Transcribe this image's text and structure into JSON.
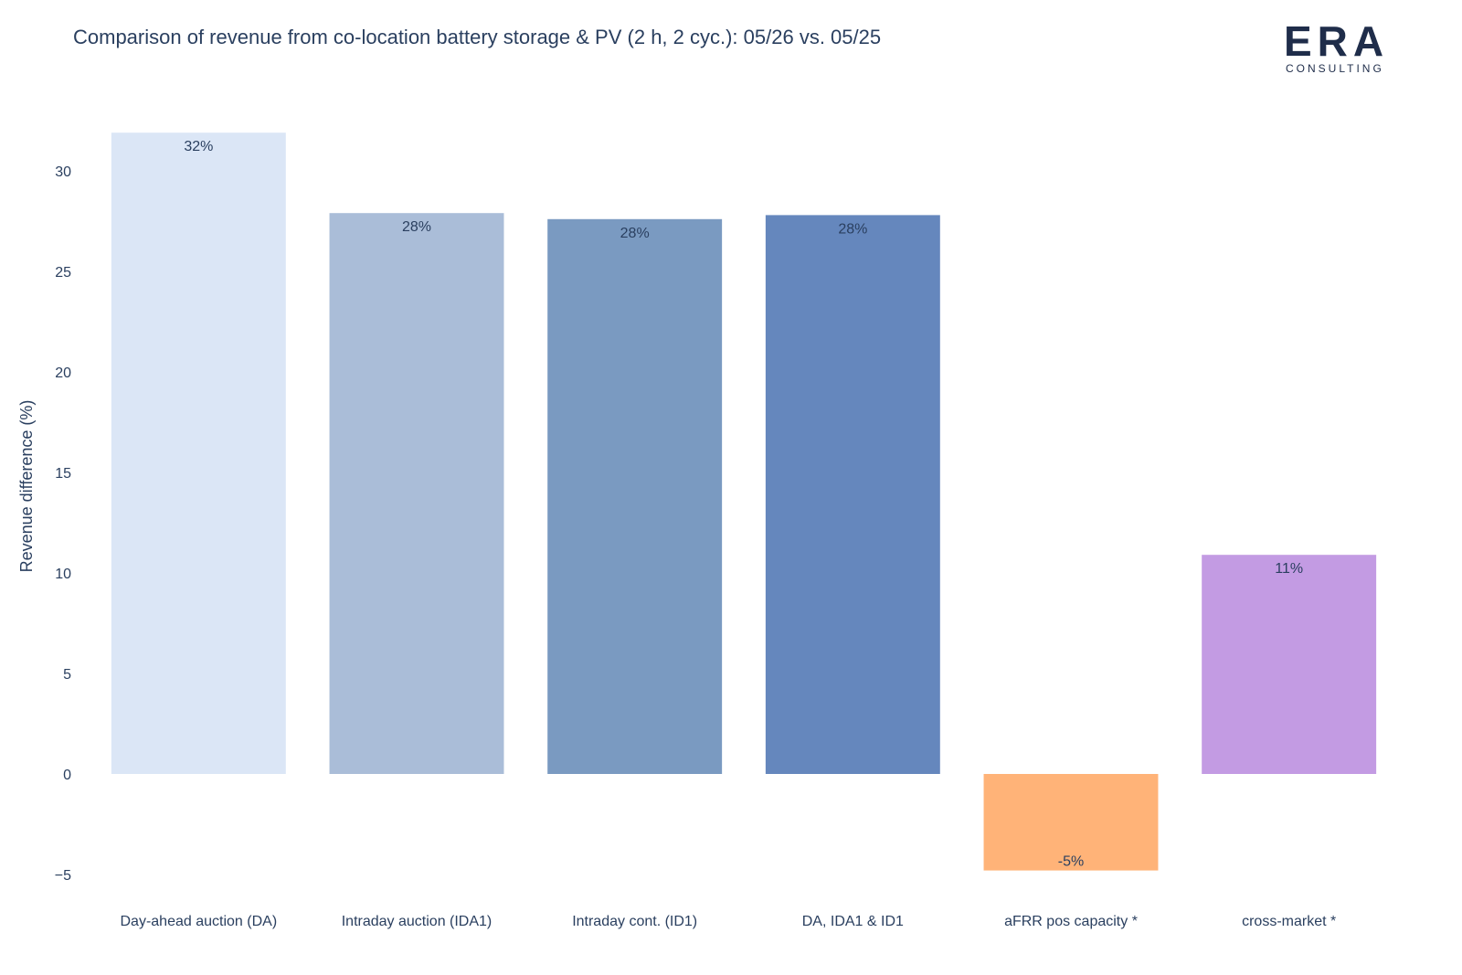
{
  "title": "Comparison of revenue from co-location battery storage & PV (2 h, 2 cyc.): 05/26 vs. 05/25",
  "logo": {
    "letters": "ERA",
    "subtitle": "CONSULTING"
  },
  "colors": {
    "text": "#2a3f5f",
    "bars": [
      "#dbe6f6",
      "#aabdd8",
      "#7a9ac1",
      "#6587bd",
      "#ffb378",
      "#c39be3"
    ]
  },
  "chart_data": {
    "type": "bar",
    "title": "Comparison of revenue from co-location battery storage & PV (2 h, 2 cyc.): 05/26 vs. 05/25",
    "xlabel": "",
    "ylabel": "Revenue difference (%)",
    "categories": [
      "Day-ahead auction (DA)",
      "Intraday auction (IDA1)",
      "Intraday cont. (ID1)",
      "DA, IDA1 & ID1",
      "aFRR pos capacity *",
      "cross-market *"
    ],
    "values": [
      31.9,
      27.9,
      27.6,
      27.8,
      -4.8,
      10.9
    ],
    "data_labels": [
      "32%",
      "28%",
      "28%",
      "28%",
      "-5%",
      "11%"
    ],
    "ylim": [
      -5.6,
      32
    ],
    "yticks": [
      -5,
      0,
      5,
      10,
      15,
      20,
      25,
      30
    ],
    "ytick_labels": [
      "−5",
      "0",
      "5",
      "10",
      "15",
      "20",
      "25",
      "30"
    ],
    "grid": false,
    "legend": "none"
  }
}
